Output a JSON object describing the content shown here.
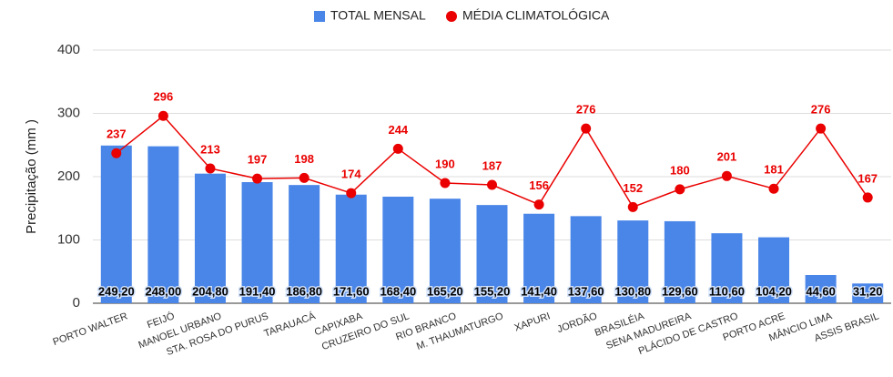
{
  "chart_data": {
    "type": "bar",
    "y_label": "Precipitação (mm )",
    "categories": [
      "PORTO WALTER",
      "FEIJÓ",
      "MANOEL URBANO",
      "STA. ROSA DO PURUS",
      "TARAUACÁ",
      "CAPIXABA",
      "CRUZEIRO DO SUL",
      "RIO BRANCO",
      "M. THAUMATURGO",
      "XAPURI",
      "JORDÃO",
      "BRASILÉIA",
      "SENA MADUREIRA",
      "PLÁCIDO DE CASTRO",
      "PORTO ACRE",
      "MÂNCIO LIMA",
      "ASSIS BRASIL"
    ],
    "series": [
      {
        "name": "TOTAL MENSAL",
        "color": "#4a86e8",
        "values": [
          249.2,
          248.0,
          204.8,
          191.4,
          186.8,
          171.6,
          168.4,
          165.2,
          155.2,
          141.4,
          137.6,
          130.8,
          129.6,
          110.6,
          104.2,
          44.6,
          31.2
        ],
        "value_labels": [
          "249,20",
          "248,00",
          "204,80",
          "191,40",
          "186,80",
          "171,60",
          "168,40",
          "165,20",
          "155,20",
          "141,40",
          "137,60",
          "130,80",
          "129,60",
          "110,60",
          "104,20",
          "44,60",
          "31,20"
        ]
      },
      {
        "name": "MÉDIA CLIMATOLÓGICA",
        "type": "line",
        "color": "#ea0000",
        "values": [
          237,
          296,
          213,
          197,
          198,
          174,
          244,
          190,
          187,
          156,
          276,
          152,
          180,
          201,
          181,
          276,
          167
        ]
      }
    ],
    "ylim": [
      0,
      400
    ],
    "yticks": [
      0,
      100,
      200,
      300,
      400
    ],
    "grid": true
  }
}
